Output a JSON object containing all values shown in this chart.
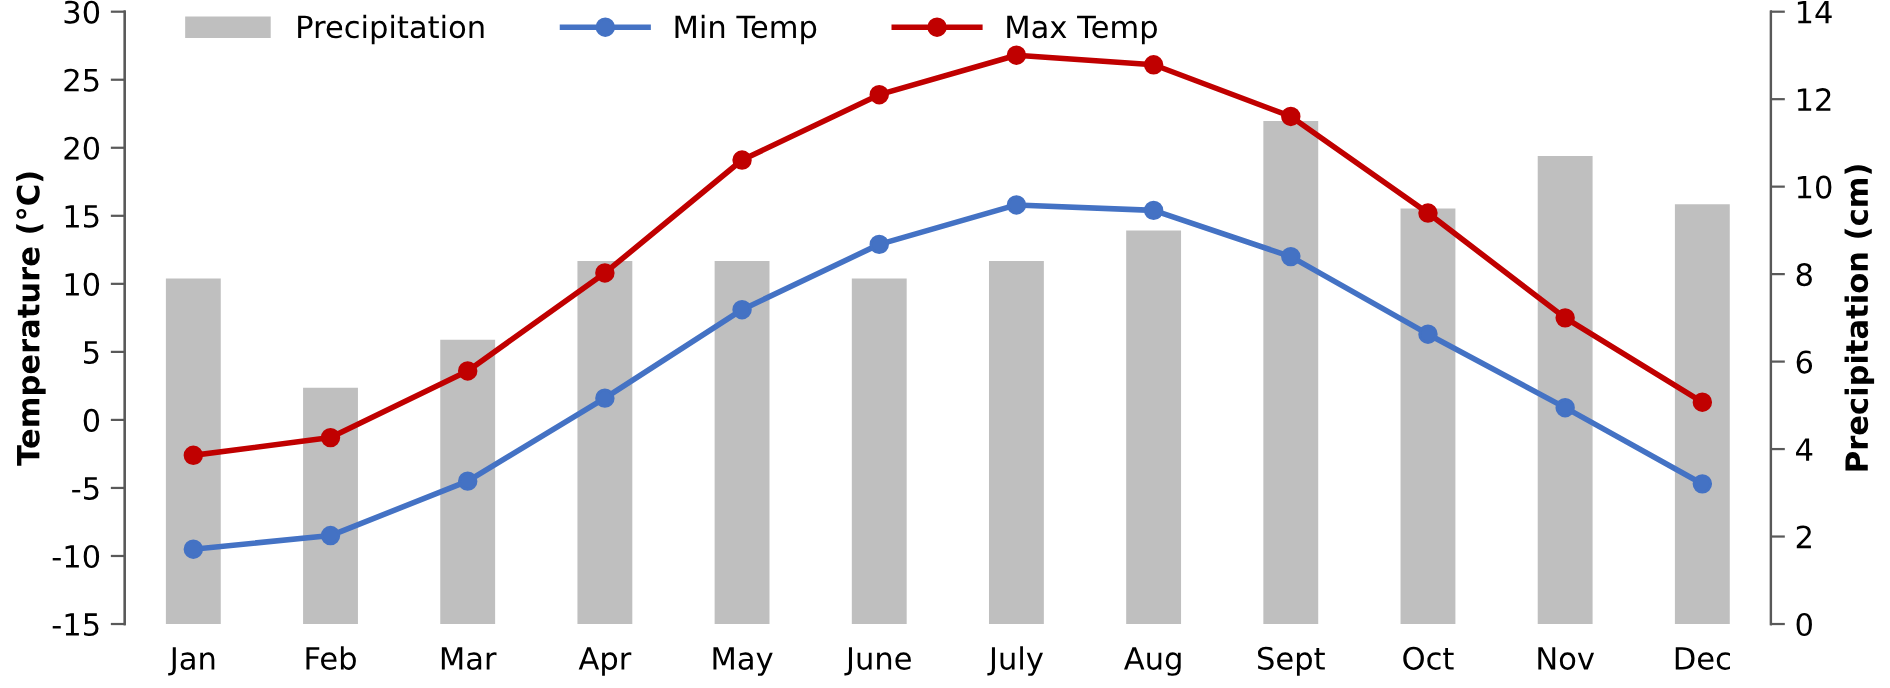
{
  "chart_data": {
    "type": "bar",
    "categories": [
      "Jan",
      "Feb",
      "Mar",
      "Apr",
      "May",
      "June",
      "July",
      "Aug",
      "Sept",
      "Oct",
      "Nov",
      "Dec"
    ],
    "series": [
      {
        "name": "Precipitation",
        "axis": "y2",
        "color": "#bfbfbf",
        "values": [
          7.9,
          5.4,
          6.5,
          8.3,
          8.3,
          7.9,
          8.3,
          9.0,
          11.5,
          9.5,
          10.7,
          9.6
        ]
      },
      {
        "name": "Min Temp",
        "type": "line",
        "color": "#4472c4",
        "values": [
          -9.5,
          -8.5,
          -4.5,
          1.6,
          8.1,
          12.9,
          15.8,
          15.4,
          12.0,
          6.3,
          0.9,
          -4.7
        ]
      },
      {
        "name": "Max Temp",
        "type": "line",
        "color": "#c00000",
        "values": [
          -2.6,
          -1.3,
          3.6,
          10.8,
          19.1,
          23.9,
          26.8,
          26.1,
          22.3,
          15.2,
          7.5,
          1.3
        ]
      }
    ],
    "ylabel": "Temperature (°C)",
    "y2label": "Precipitation (cm)",
    "ylim": [
      -15,
      30
    ],
    "yticks": [
      -15,
      -10,
      -5,
      0,
      5,
      10,
      15,
      20,
      25,
      30
    ],
    "y2lim": [
      0,
      14
    ],
    "y2ticks": [
      0,
      2,
      4,
      6,
      8,
      10,
      12,
      14
    ],
    "marker": "circle",
    "line_style": "solid",
    "legend": "top left",
    "grid": false
  }
}
